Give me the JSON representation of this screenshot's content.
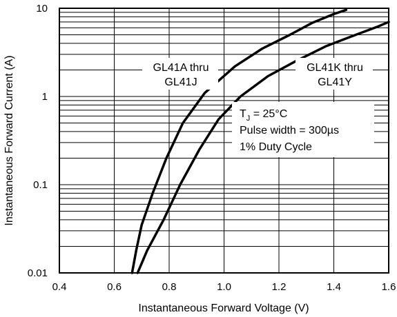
{
  "chart_data": {
    "type": "line",
    "title": "",
    "xlabel": "Instantaneous Forward Voltage (V)",
    "ylabel": "Instantaneous Forward Current (A)",
    "xlim": [
      0.4,
      1.6
    ],
    "ylim": [
      0.01,
      10
    ],
    "yscale": "log",
    "grid": true,
    "x_ticks": [
      {
        "value": 0.4,
        "label": "0.4"
      },
      {
        "value": 0.6,
        "label": "0.6"
      },
      {
        "value": 0.8,
        "label": "0.8"
      },
      {
        "value": 1.0,
        "label": "1.0"
      },
      {
        "value": 1.2,
        "label": "1.2"
      },
      {
        "value": 1.4,
        "label": "1.4"
      },
      {
        "value": 1.6,
        "label": "1.6"
      }
    ],
    "y_ticks": [
      {
        "value": 0.01,
        "label": "0.01"
      },
      {
        "value": 0.1,
        "label": "0.1"
      },
      {
        "value": 1,
        "label": "1"
      },
      {
        "value": 10,
        "label": "10"
      }
    ],
    "series": [
      {
        "name": "GL41A thru GL41J",
        "label_lines": [
          "GL41A thru",
          "GL41J"
        ],
        "color": "#000000",
        "points": [
          [
            0.665,
            0.01
          ],
          [
            0.68,
            0.018
          ],
          [
            0.7,
            0.035
          ],
          [
            0.74,
            0.08
          ],
          [
            0.79,
            0.2
          ],
          [
            0.85,
            0.5
          ],
          [
            0.93,
            1.1
          ],
          [
            1.04,
            2.2
          ],
          [
            1.14,
            3.5
          ],
          [
            1.24,
            5.0
          ],
          [
            1.32,
            6.8
          ],
          [
            1.4,
            8.6
          ],
          [
            1.445,
            9.6
          ]
        ]
      },
      {
        "name": "GL41K thru GL41Y",
        "label_lines": [
          "GL41K thru",
          "GL41Y"
        ],
        "color": "#000000",
        "points": [
          [
            0.685,
            0.01
          ],
          [
            0.72,
            0.018
          ],
          [
            0.78,
            0.04
          ],
          [
            0.84,
            0.1
          ],
          [
            0.91,
            0.25
          ],
          [
            0.98,
            0.55
          ],
          [
            1.06,
            1.0
          ],
          [
            1.16,
            1.7
          ],
          [
            1.26,
            2.5
          ],
          [
            1.37,
            3.7
          ],
          [
            1.48,
            5.0
          ],
          [
            1.56,
            6.2
          ],
          [
            1.6,
            7.0
          ]
        ]
      }
    ],
    "conditions": {
      "temp_prefix": "T",
      "temp_subscript": "J",
      "temp_value": " = 25°C",
      "pulse": "Pulse width = 300µs",
      "duty": "1% Duty Cycle"
    }
  }
}
